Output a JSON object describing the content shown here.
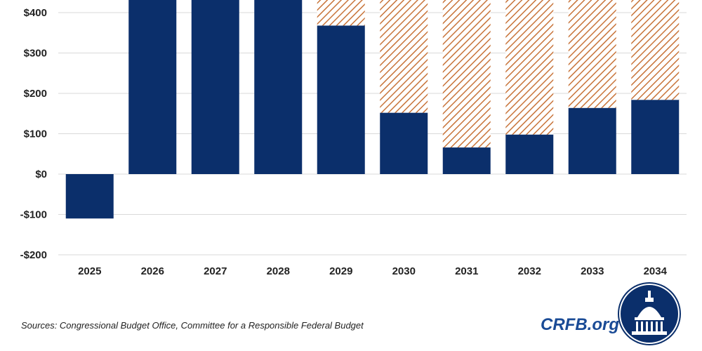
{
  "chart_data": {
    "type": "bar",
    "stacked": true,
    "categories": [
      "2025",
      "2026",
      "2027",
      "2028",
      "2029",
      "2030",
      "2031",
      "2032",
      "2033",
      "2034"
    ],
    "series": [
      {
        "color": "#0b2f6b",
        "pattern": "solid",
        "values": [
          -110,
          440,
          440,
          440,
          368,
          152,
          66,
          98,
          164,
          184
        ]
      },
      {
        "color": "#c8743a",
        "pattern": "diagonal-hatch",
        "values": [
          0,
          0,
          0,
          0,
          72,
          288,
          374,
          342,
          276,
          256
        ]
      }
    ],
    "y_ticks": [
      -200,
      -100,
      0,
      100,
      200,
      300,
      400
    ],
    "y_tick_labels": [
      "-$200",
      "-$100",
      "$0",
      "$100",
      "$200",
      "$300",
      "$400"
    ],
    "ylim": [
      -200,
      440
    ],
    "grid": true
  },
  "footer": {
    "source": "Sources: Congressional Budget Office, Committee for a Responsible Federal Budget",
    "brand": "CRFB.org",
    "brand_color": "#1a4b96"
  },
  "logo": {
    "icon": "capitol-dome-icon",
    "color": "#0b2f6b"
  }
}
